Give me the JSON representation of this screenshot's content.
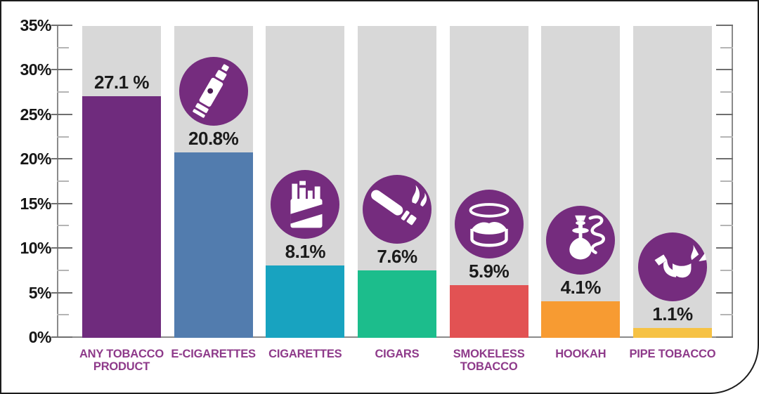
{
  "chart_data": {
    "type": "bar",
    "title": "",
    "categories": [
      "ANY TOBACCO PRODUCT",
      "E-CIGARETTES",
      "CIGARETTES",
      "CIGARS",
      "SMOKELESS TOBACCO",
      "HOOKAH",
      "PIPE TOBACCO"
    ],
    "values": [
      27.1,
      20.8,
      8.1,
      7.6,
      5.9,
      4.1,
      1.1
    ],
    "value_labels": [
      "27.1 %",
      "20.8%",
      "8.1%",
      "7.6%",
      "5.9%",
      "4.1%",
      "1.1%"
    ],
    "series_colors": [
      "#6f2b7d",
      "#527cae",
      "#18a3c0",
      "#1cbd8c",
      "#e25253",
      "#f79b32",
      "#f6c244"
    ],
    "icons": [
      null,
      "e-cigarette-icon",
      "cigarette-pack-icon",
      "cigar-icon",
      "smokeless-tobacco-tin-icon",
      "hookah-icon",
      "tobacco-pipe-icon"
    ],
    "xlabel": "",
    "ylabel": "",
    "ylim": [
      0,
      35
    ],
    "y_major_step": 5,
    "y_minor_step": 2.5,
    "y_tick_labels": [
      "0%",
      "5%",
      "10%",
      "15%",
      "20%",
      "25%",
      "30%",
      "35%"
    ],
    "grid": false,
    "legend": false,
    "layout_hints": {
      "column_background": "#d8d8d8",
      "icon_circle_color": "#752c7e",
      "category_label_color": "#8e3a8a",
      "value_label_color": "#1b1b1b",
      "axis_color": "#8a8a8a",
      "major_tick_color": "#6f6f6f",
      "minor_tick_color": "#b5b5b5",
      "frame_border_color": "#1c1c1c"
    }
  }
}
